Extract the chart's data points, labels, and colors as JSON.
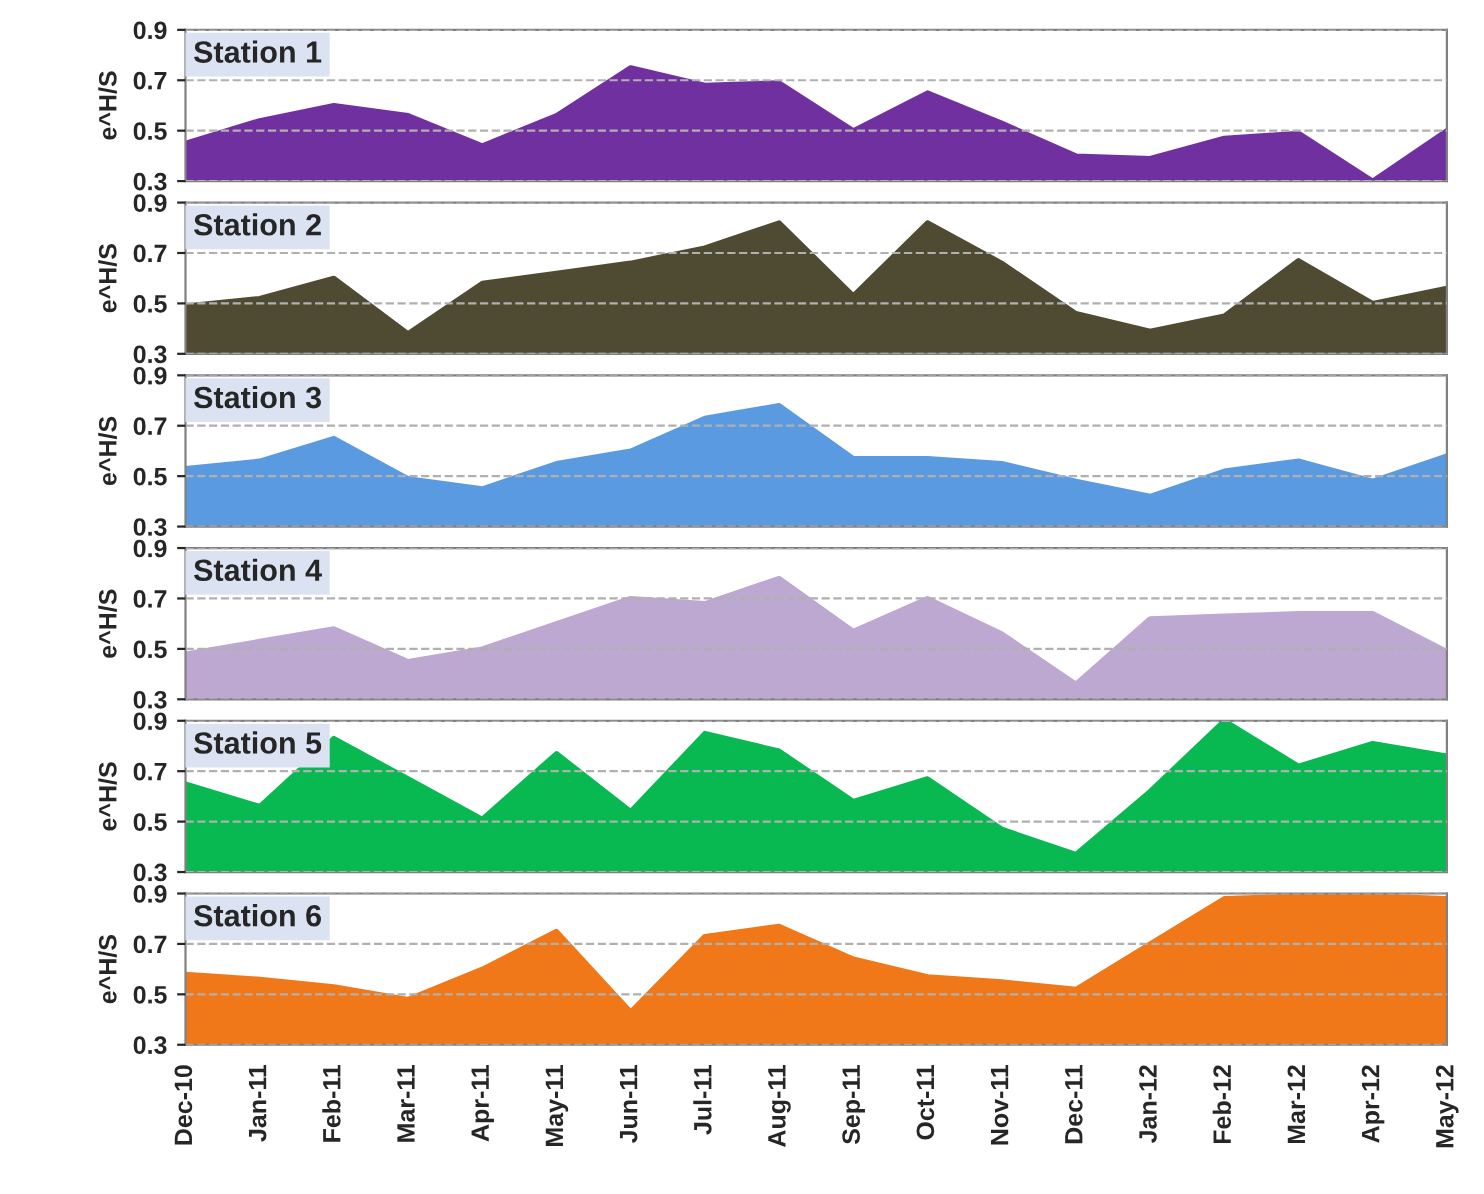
{
  "chart_data": [
    {
      "type": "area",
      "title": "Station 1",
      "ylabel": "e^H/S",
      "categories": [
        null,
        null,
        null,
        null,
        null,
        null,
        null,
        null,
        null,
        null,
        null,
        null,
        null,
        null,
        null,
        null,
        null,
        null
      ],
      "series": [
        {
          "color": "#7030a0",
          "values": [
            0.45,
            0.54,
            0.6,
            0.56,
            0.44,
            0.56,
            0.75,
            0.68,
            0.69,
            0.5,
            0.65,
            0.53,
            0.4,
            0.39,
            0.47,
            0.49,
            0.3,
            0.5
          ]
        }
      ],
      "ylim": [
        0.3,
        0.9
      ],
      "yticks": [
        0.3,
        0.5,
        0.7,
        0.9
      ],
      "grid": "y",
      "tick_labels": "y"
    },
    {
      "type": "area",
      "title": "Station 2",
      "ylabel": "e^H/S",
      "categories": [
        null,
        null,
        null,
        null,
        null,
        null,
        null,
        null,
        null,
        null,
        null,
        null,
        null,
        null,
        null,
        null,
        null,
        null
      ],
      "series": [
        {
          "color": "#4f4a32",
          "values": [
            0.49,
            0.52,
            0.6,
            0.38,
            0.58,
            0.62,
            0.66,
            0.72,
            0.82,
            0.53,
            0.82,
            0.66,
            0.46,
            0.39,
            0.45,
            0.67,
            0.5,
            0.56
          ]
        }
      ],
      "ylim": [
        0.3,
        0.9
      ],
      "yticks": [
        0.3,
        0.5,
        0.7,
        0.9
      ],
      "grid": "y",
      "tick_labels": "y"
    },
    {
      "type": "area",
      "title": "Station 3",
      "ylabel": "e^H/S",
      "categories": [
        null,
        null,
        null,
        null,
        null,
        null,
        null,
        null,
        null,
        null,
        null,
        null,
        null,
        null,
        null,
        null,
        null,
        null
      ],
      "series": [
        {
          "color": "#5a9ae0",
          "values": [
            0.53,
            0.56,
            0.65,
            0.49,
            0.45,
            0.55,
            0.6,
            0.73,
            0.78,
            0.57,
            0.57,
            0.55,
            0.48,
            0.42,
            0.52,
            0.56,
            0.48,
            0.58
          ]
        }
      ],
      "ylim": [
        0.3,
        0.9
      ],
      "yticks": [
        0.3,
        0.5,
        0.7,
        0.9
      ],
      "grid": "y",
      "tick_labels": "y"
    },
    {
      "type": "area",
      "title": "Station 4",
      "ylabel": "e^H/S",
      "categories": [
        null,
        null,
        null,
        null,
        null,
        null,
        null,
        null,
        null,
        null,
        null,
        null,
        null,
        null,
        null,
        null,
        null,
        null
      ],
      "series": [
        {
          "color": "#bda8d2",
          "values": [
            0.48,
            0.53,
            0.58,
            0.45,
            0.5,
            0.6,
            0.7,
            0.68,
            0.78,
            0.57,
            0.7,
            0.56,
            0.36,
            0.62,
            0.63,
            0.64,
            0.64,
            0.49
          ]
        }
      ],
      "ylim": [
        0.3,
        0.9
      ],
      "yticks": [
        0.3,
        0.5,
        0.7,
        0.9
      ],
      "grid": "y",
      "tick_labels": "y"
    },
    {
      "type": "area",
      "title": "Station 5",
      "ylabel": "e^H/S",
      "categories": [
        null,
        null,
        null,
        null,
        null,
        null,
        null,
        null,
        null,
        null,
        null,
        null,
        null,
        null,
        null,
        null,
        null,
        null
      ],
      "series": [
        {
          "color": "#08b850",
          "values": [
            0.65,
            0.56,
            0.83,
            0.67,
            0.51,
            0.77,
            0.54,
            0.85,
            0.78,
            0.58,
            0.67,
            0.47,
            0.37,
            0.62,
            0.9,
            0.72,
            0.81,
            0.76
          ]
        }
      ],
      "ylim": [
        0.3,
        0.9
      ],
      "yticks": [
        0.3,
        0.5,
        0.7,
        0.9
      ],
      "grid": "y",
      "tick_labels": "y"
    },
    {
      "type": "area",
      "title": "Station 6",
      "ylabel": "e^H/S",
      "categories": [
        "Dec-10",
        "Jan-11",
        "Feb-11",
        "Mar-11",
        "Apr-11",
        "May-11",
        "Jun-11",
        "Jul-11",
        "Aug-11",
        "Sep-11",
        "Oct-11",
        "Nov-11",
        "Dec-11",
        "Jan-12",
        "Feb-12",
        "Mar-12",
        "Apr-12",
        "May-12"
      ],
      "series": [
        {
          "color": "#f07818",
          "values": [
            0.58,
            0.56,
            0.53,
            0.48,
            0.6,
            0.75,
            0.43,
            0.73,
            0.77,
            0.64,
            0.57,
            0.55,
            0.52,
            0.7,
            0.88,
            0.89,
            0.89,
            0.88
          ]
        }
      ],
      "ylim": [
        0.3,
        0.9
      ],
      "yticks": [
        0.3,
        0.5,
        0.7,
        0.9
      ],
      "grid": "y"
    }
  ]
}
